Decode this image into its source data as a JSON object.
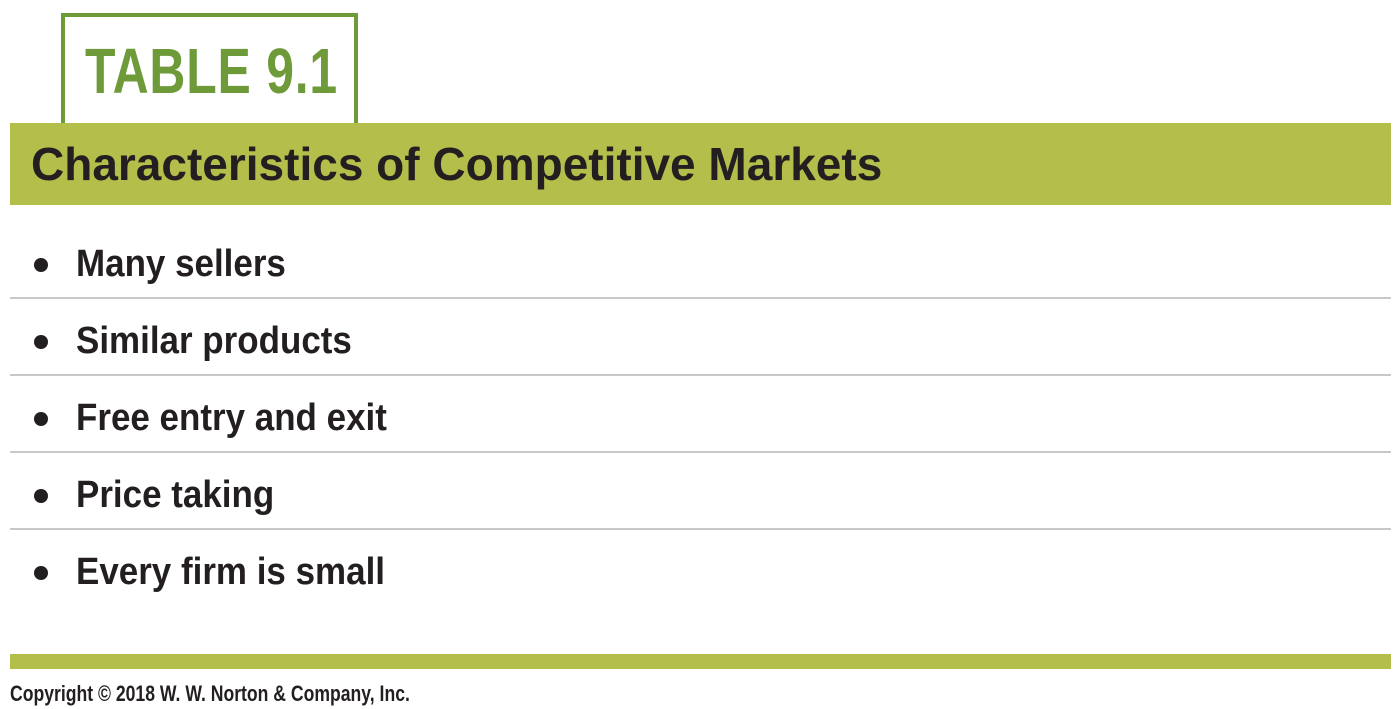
{
  "table_label": "TABLE 9.1",
  "title": "Characteristics of Competitive Markets",
  "items": [
    {
      "text": "Many sellers"
    },
    {
      "text": "Similar products"
    },
    {
      "text": "Free entry and exit"
    },
    {
      "text": "Price taking"
    },
    {
      "text": "Every firm is small"
    }
  ],
  "copyright": "Copyright © 2018 W. W. Norton & Company, Inc.",
  "colors": {
    "label_green": "#6e9a3a",
    "bar_green": "#b3be4b",
    "text": "#231f20",
    "divider": "#c8c8c8"
  }
}
